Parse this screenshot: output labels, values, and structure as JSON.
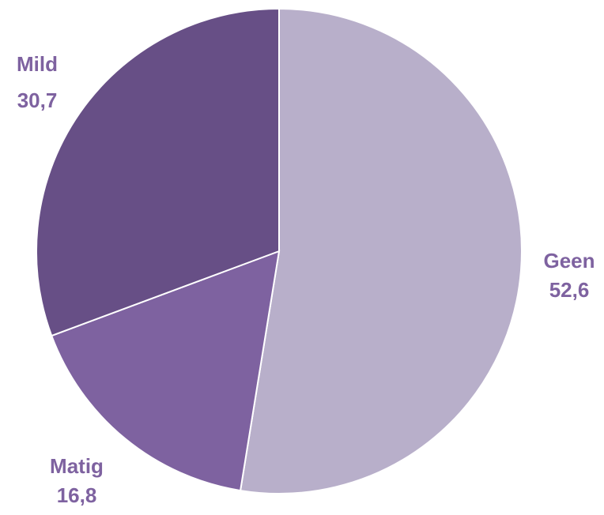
{
  "chart_data": {
    "type": "pie",
    "start": "12 o'clock",
    "direction": "clockwise",
    "slices": [
      {
        "label": "Geen",
        "value": 52.6,
        "value_text": "52,6",
        "color": "#b8afca"
      },
      {
        "label": "Matig",
        "value": 16.8,
        "value_text": "16,8",
        "color": "#7e62a0"
      },
      {
        "label": "Mild",
        "value": 30.7,
        "value_text": "30,7",
        "color": "#674f86"
      }
    ],
    "label_color": "#7e62a0"
  }
}
